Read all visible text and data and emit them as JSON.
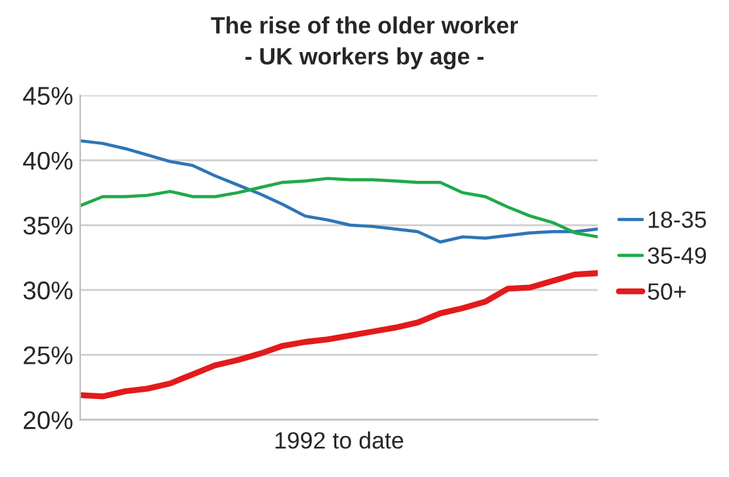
{
  "chart_data": {
    "type": "line",
    "title": "The rise of the older worker",
    "subtitle": "- UK workers by age -",
    "xlabel": "1992 to date",
    "categories": [
      null,
      null,
      null,
      null,
      null,
      null,
      null,
      null,
      null,
      null,
      null,
      null,
      null,
      null,
      null,
      null,
      null,
      null,
      null,
      null,
      null,
      null,
      null,
      null
    ],
    "series": [
      {
        "name": "18-35",
        "color": "#2e75b6",
        "values": [
          41.5,
          41.3,
          40.9,
          40.4,
          39.9,
          39.6,
          38.8,
          38.1,
          37.4,
          36.6,
          35.7,
          35.4,
          35.0,
          34.9,
          34.7,
          34.5,
          33.7,
          34.1,
          34.0,
          34.2,
          34.4,
          34.5,
          34.5,
          34.7
        ]
      },
      {
        "name": "35-49",
        "color": "#1faa4a",
        "values": [
          36.5,
          37.2,
          37.2,
          37.3,
          37.6,
          37.2,
          37.2,
          37.5,
          37.9,
          38.3,
          38.4,
          38.6,
          38.5,
          38.5,
          38.4,
          38.3,
          38.3,
          37.5,
          37.2,
          36.4,
          35.7,
          35.2,
          34.4,
          34.1
        ]
      },
      {
        "name": "50+",
        "color": "#e31a1c",
        "values": [
          21.9,
          21.8,
          22.2,
          22.4,
          22.8,
          23.5,
          24.2,
          24.6,
          25.1,
          25.7,
          26.0,
          26.2,
          26.5,
          26.8,
          27.1,
          27.5,
          28.2,
          28.6,
          29.1,
          30.1,
          30.2,
          30.7,
          31.2,
          31.3
        ]
      }
    ],
    "ylim": [
      20,
      45
    ],
    "yticks": [
      {
        "value": 20,
        "label": "20%"
      },
      {
        "value": 25,
        "label": "25%"
      },
      {
        "value": 30,
        "label": "30%"
      },
      {
        "value": 35,
        "label": "35%"
      },
      {
        "value": 40,
        "label": "40%"
      },
      {
        "value": 45,
        "label": "45%"
      }
    ],
    "tick_labels": "y",
    "grid": "y",
    "legend": "right",
    "marker": "none",
    "line_style": "solid"
  }
}
